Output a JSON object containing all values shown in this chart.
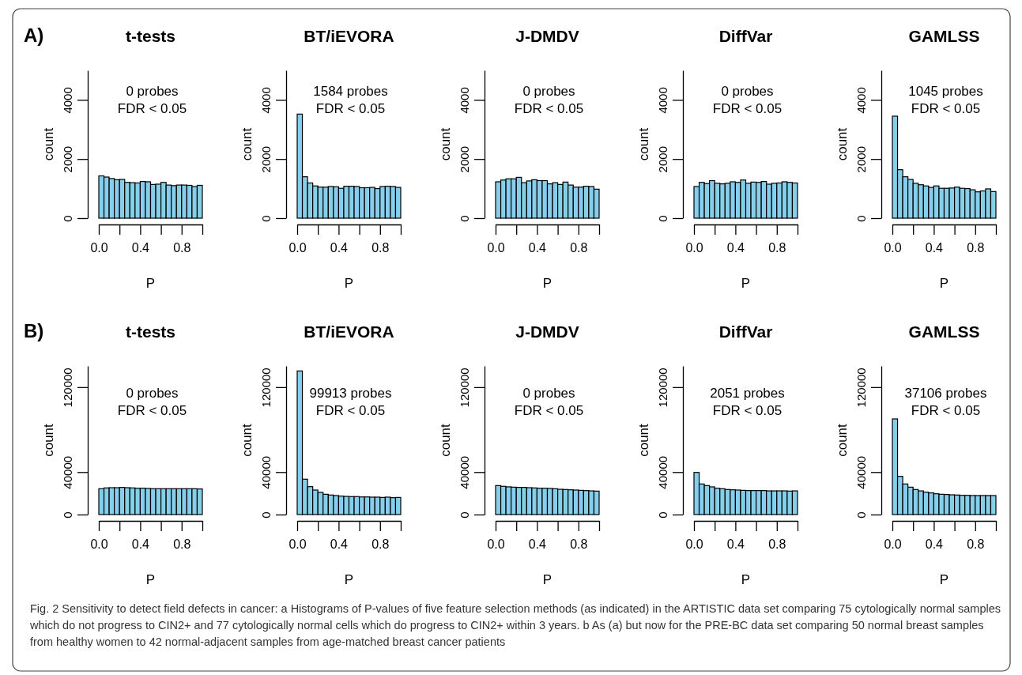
{
  "chart_data": [
    {
      "type": "histogram",
      "title": "t-tests",
      "xlabel": "P",
      "ylabel": "count",
      "color": "#87ceeb",
      "bins": [
        0,
        0.05,
        0.1,
        0.15,
        0.2,
        0.25,
        0.3,
        0.35,
        0.4,
        0.45,
        0.5,
        0.55,
        0.6,
        0.65,
        0.7,
        0.75,
        0.8,
        0.85,
        0.9,
        0.95,
        1
      ],
      "values": [
        1430,
        1390,
        1340,
        1300,
        1310,
        1210,
        1200,
        1190,
        1240,
        1230,
        1140,
        1150,
        1210,
        1120,
        1100,
        1120,
        1120,
        1110,
        1070,
        1110
      ],
      "xlim": [
        0,
        1
      ],
      "xticks": [
        {
          "value": 0,
          "label": "0.0"
        },
        {
          "value": 0.2,
          "label": null
        },
        {
          "value": 0.4,
          "label": "0.4"
        },
        {
          "value": 0.6,
          "label": null
        },
        {
          "value": 0.8,
          "label": "0.8"
        },
        {
          "value": 1,
          "label": null
        }
      ],
      "ylim": [
        0,
        5000
      ],
      "yticks": [
        0,
        2000,
        4000
      ],
      "annotations": [
        "0 probes",
        "FDR < 0.05",
        "A)"
      ]
    },
    {
      "type": "histogram",
      "title": "BT/iEVORA",
      "xlabel": "P",
      "ylabel": "count",
      "color": "#87ceeb",
      "bins": [
        0,
        0.05,
        0.1,
        0.15,
        0.2,
        0.25,
        0.3,
        0.35,
        0.4,
        0.45,
        0.5,
        0.55,
        0.6,
        0.65,
        0.7,
        0.75,
        0.8,
        0.85,
        0.9,
        0.95,
        1
      ],
      "values": [
        3520,
        1400,
        1190,
        1090,
        1050,
        1050,
        1070,
        1060,
        1010,
        1080,
        1080,
        1070,
        1030,
        1030,
        1040,
        1000,
        1070,
        1080,
        1070,
        1040
      ],
      "xlim": [
        0,
        1
      ],
      "xticks": [
        {
          "value": 0,
          "label": "0.0"
        },
        {
          "value": 0.2,
          "label": null
        },
        {
          "value": 0.4,
          "label": "0.4"
        },
        {
          "value": 0.6,
          "label": null
        },
        {
          "value": 0.8,
          "label": "0.8"
        },
        {
          "value": 1,
          "label": null
        }
      ],
      "ylim": [
        0,
        5000
      ],
      "yticks": [
        0,
        2000,
        4000
      ],
      "annotations": [
        "1584 probes",
        "FDR < 0.05"
      ]
    },
    {
      "type": "histogram",
      "title": "J-DMDV",
      "xlabel": "P",
      "ylabel": "count",
      "color": "#87ceeb",
      "bins": [
        0,
        0.05,
        0.1,
        0.15,
        0.2,
        0.25,
        0.3,
        0.35,
        0.4,
        0.45,
        0.5,
        0.55,
        0.6,
        0.65,
        0.7,
        0.75,
        0.8,
        0.85,
        0.9,
        0.95,
        1
      ],
      "values": [
        1230,
        1290,
        1330,
        1330,
        1380,
        1200,
        1260,
        1300,
        1270,
        1270,
        1160,
        1200,
        1140,
        1220,
        1120,
        1050,
        1050,
        1080,
        1070,
        980
      ],
      "xlim": [
        0,
        1
      ],
      "xticks": [
        {
          "value": 0,
          "label": "0.0"
        },
        {
          "value": 0.2,
          "label": null
        },
        {
          "value": 0.4,
          "label": "0.4"
        },
        {
          "value": 0.6,
          "label": null
        },
        {
          "value": 0.8,
          "label": "0.8"
        },
        {
          "value": 1,
          "label": null
        }
      ],
      "ylim": [
        0,
        5000
      ],
      "yticks": [
        0,
        2000,
        4000
      ],
      "annotations": [
        "0 probes",
        "FDR < 0.05"
      ]
    },
    {
      "type": "histogram",
      "title": "DiffVar",
      "xlabel": "P",
      "ylabel": "count",
      "color": "#87ceeb",
      "bins": [
        0,
        0.05,
        0.1,
        0.15,
        0.2,
        0.25,
        0.3,
        0.35,
        0.4,
        0.45,
        0.5,
        0.55,
        0.6,
        0.65,
        0.7,
        0.75,
        0.8,
        0.85,
        0.9,
        0.95,
        1
      ],
      "values": [
        1070,
        1210,
        1170,
        1270,
        1180,
        1160,
        1180,
        1230,
        1210,
        1290,
        1180,
        1220,
        1210,
        1240,
        1150,
        1180,
        1190,
        1230,
        1210,
        1190
      ],
      "xlim": [
        0,
        1
      ],
      "xticks": [
        {
          "value": 0,
          "label": "0.0"
        },
        {
          "value": 0.2,
          "label": null
        },
        {
          "value": 0.4,
          "label": "0.4"
        },
        {
          "value": 0.6,
          "label": null
        },
        {
          "value": 0.8,
          "label": "0.8"
        },
        {
          "value": 1,
          "label": null
        }
      ],
      "ylim": [
        0,
        5000
      ],
      "yticks": [
        0,
        2000,
        4000
      ],
      "annotations": [
        "0 probes",
        "FDR < 0.05"
      ]
    },
    {
      "type": "histogram",
      "title": "GAMLSS",
      "xlabel": "P",
      "ylabel": "count",
      "color": "#87ceeb",
      "bins": [
        0,
        0.05,
        0.1,
        0.15,
        0.2,
        0.25,
        0.3,
        0.35,
        0.4,
        0.45,
        0.5,
        0.55,
        0.6,
        0.65,
        0.7,
        0.75,
        0.8,
        0.85,
        0.9,
        0.95,
        1
      ],
      "values": [
        3450,
        1640,
        1400,
        1310,
        1180,
        1130,
        1090,
        1040,
        1090,
        1010,
        1010,
        1020,
        1050,
        1010,
        1000,
        960,
        890,
        920,
        990,
        900
      ],
      "xlim": [
        0,
        1
      ],
      "xticks": [
        {
          "value": 0,
          "label": "0.0"
        },
        {
          "value": 0.2,
          "label": null
        },
        {
          "value": 0.4,
          "label": "0.4"
        },
        {
          "value": 0.6,
          "label": null
        },
        {
          "value": 0.8,
          "label": "0.8"
        },
        {
          "value": 1,
          "label": null
        }
      ],
      "ylim": [
        0,
        5000
      ],
      "yticks": [
        0,
        2000,
        4000
      ],
      "annotations": [
        "1045 probes",
        "FDR < 0.05"
      ]
    },
    {
      "type": "histogram",
      "title": "t-tests",
      "xlabel": "P",
      "ylabel": "count",
      "color": "#87ceeb",
      "bins": [
        0,
        0.05,
        0.1,
        0.15,
        0.2,
        0.25,
        0.3,
        0.35,
        0.4,
        0.45,
        0.5,
        0.55,
        0.6,
        0.65,
        0.7,
        0.75,
        0.8,
        0.85,
        0.9,
        0.95,
        1
      ],
      "values": [
        24300,
        25100,
        25300,
        25300,
        25600,
        25300,
        25100,
        24800,
        24800,
        24600,
        24300,
        24300,
        24300,
        24300,
        24300,
        24300,
        24300,
        24300,
        24300,
        24100
      ],
      "xlim": [
        0,
        1
      ],
      "xticks": [
        {
          "value": 0,
          "label": "0.0"
        },
        {
          "value": 0.2,
          "label": null
        },
        {
          "value": 0.4,
          "label": "0.4"
        },
        {
          "value": 0.6,
          "label": null
        },
        {
          "value": 0.8,
          "label": "0.8"
        },
        {
          "value": 1,
          "label": null
        }
      ],
      "ylim": [
        0,
        140000
      ],
      "yticks": [
        0,
        40000,
        120000
      ],
      "annotations": [
        "0 probes",
        "FDR < 0.05",
        "B)",
        "Fig. 2 Sensitivity to detect field defects in cancer: a Histograms of P-values of five feature selection methods (as indicated) in the ARTISTIC data set comparing 75 cytologically normal samples which do not progress to CIN2+ and 77 cytologically normal cells which do progress to CIN2+ within 3 years. b As (a) but now for the PRE-BC data set comparing 50 normal breast samples from healthy women to 42 normal-adjacent samples from age-matched breast cancer patients"
      ]
    },
    {
      "type": "histogram",
      "title": "BT/iEVORA",
      "xlabel": "P",
      "ylabel": "count",
      "color": "#87ceeb",
      "bins": [
        0,
        0.05,
        0.1,
        0.15,
        0.2,
        0.25,
        0.3,
        0.35,
        0.4,
        0.45,
        0.5,
        0.55,
        0.6,
        0.65,
        0.7,
        0.75,
        0.8,
        0.85,
        0.9,
        0.95,
        1
      ],
      "values": [
        135300,
        33300,
        26300,
        23100,
        20900,
        19100,
        18400,
        17900,
        17400,
        17100,
        16900,
        16900,
        16600,
        16600,
        16400,
        16400,
        16100,
        16400,
        15900,
        16100
      ],
      "xlim": [
        0,
        1
      ],
      "xticks": [
        {
          "value": 0,
          "label": "0.0"
        },
        {
          "value": 0.2,
          "label": null
        },
        {
          "value": 0.4,
          "label": "0.4"
        },
        {
          "value": 0.6,
          "label": null
        },
        {
          "value": 0.8,
          "label": "0.8"
        },
        {
          "value": 1,
          "label": null
        }
      ],
      "ylim": [
        0,
        140000
      ],
      "yticks": [
        0,
        40000,
        120000
      ],
      "annotations": [
        "99913 probes",
        "FDR < 0.05"
      ]
    },
    {
      "type": "histogram",
      "title": "J-DMDV",
      "xlabel": "P",
      "ylabel": "count",
      "color": "#87ceeb",
      "bins": [
        0,
        0.05,
        0.1,
        0.15,
        0.2,
        0.25,
        0.3,
        0.35,
        0.4,
        0.45,
        0.5,
        0.55,
        0.6,
        0.65,
        0.7,
        0.75,
        0.8,
        0.85,
        0.9,
        0.95,
        1
      ],
      "values": [
        27300,
        26600,
        26100,
        25800,
        25600,
        25600,
        25300,
        25100,
        24800,
        24800,
        24600,
        24300,
        23800,
        23600,
        23300,
        23100,
        22800,
        22600,
        22300,
        22100
      ],
      "xlim": [
        0,
        1
      ],
      "xticks": [
        {
          "value": 0,
          "label": "0.0"
        },
        {
          "value": 0.2,
          "label": null
        },
        {
          "value": 0.4,
          "label": "0.4"
        },
        {
          "value": 0.6,
          "label": null
        },
        {
          "value": 0.8,
          "label": "0.8"
        },
        {
          "value": 1,
          "label": null
        }
      ],
      "ylim": [
        0,
        140000
      ],
      "yticks": [
        0,
        40000,
        120000
      ],
      "annotations": [
        "0 probes",
        "FDR < 0.05"
      ]
    },
    {
      "type": "histogram",
      "title": "DiffVar",
      "xlabel": "P",
      "ylabel": "count",
      "color": "#87ceeb",
      "bins": [
        0,
        0.05,
        0.1,
        0.15,
        0.2,
        0.25,
        0.3,
        0.35,
        0.4,
        0.45,
        0.5,
        0.55,
        0.6,
        0.65,
        0.7,
        0.75,
        0.8,
        0.85,
        0.9,
        0.95,
        1
      ],
      "values": [
        39700,
        28800,
        27300,
        26100,
        24800,
        24300,
        23600,
        23300,
        23100,
        22800,
        22600,
        22600,
        22600,
        22600,
        22300,
        22300,
        22300,
        22300,
        22100,
        22300
      ],
      "xlim": [
        0,
        1
      ],
      "xticks": [
        {
          "value": 0,
          "label": "0.0"
        },
        {
          "value": 0.2,
          "label": null
        },
        {
          "value": 0.4,
          "label": "0.4"
        },
        {
          "value": 0.6,
          "label": null
        },
        {
          "value": 0.8,
          "label": "0.8"
        },
        {
          "value": 1,
          "label": null
        }
      ],
      "ylim": [
        0,
        140000
      ],
      "yticks": [
        0,
        40000,
        120000
      ],
      "annotations": [
        "2051 probes",
        "FDR < 0.05"
      ]
    },
    {
      "type": "histogram",
      "title": "GAMLSS",
      "xlabel": "P",
      "ylabel": "count",
      "color": "#87ceeb",
      "bins": [
        0,
        0.05,
        0.1,
        0.15,
        0.2,
        0.25,
        0.3,
        0.35,
        0.4,
        0.45,
        0.5,
        0.55,
        0.6,
        0.65,
        0.7,
        0.75,
        0.8,
        0.85,
        0.9,
        0.95,
        1
      ],
      "values": [
        90100,
        36000,
        28800,
        25800,
        23600,
        22300,
        21100,
        20400,
        19600,
        19100,
        18900,
        18600,
        18400,
        18100,
        18100,
        17900,
        17900,
        17900,
        17900,
        17900
      ],
      "xlim": [
        0,
        1
      ],
      "xticks": [
        {
          "value": 0,
          "label": "0.0"
        },
        {
          "value": 0.2,
          "label": null
        },
        {
          "value": 0.4,
          "label": "0.4"
        },
        {
          "value": 0.6,
          "label": null
        },
        {
          "value": 0.8,
          "label": "0.8"
        },
        {
          "value": 1,
          "label": null
        }
      ],
      "ylim": [
        0,
        140000
      ],
      "yticks": [
        0,
        40000,
        120000
      ],
      "annotations": [
        "37106 probes",
        "FDR < 0.05"
      ]
    }
  ]
}
